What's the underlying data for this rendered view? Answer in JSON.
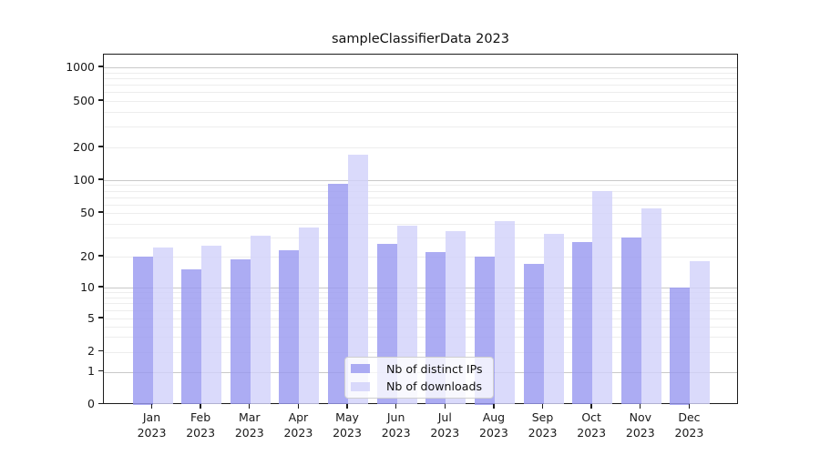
{
  "chart_data": {
    "type": "bar",
    "title": "sampleClassifierData 2023",
    "categories": [
      "Jan 2023",
      "Feb 2023",
      "Mar 2023",
      "Apr 2023",
      "May 2023",
      "Jun 2023",
      "Jul 2023",
      "Aug 2023",
      "Sep 2023",
      "Oct 2023",
      "Nov 2023",
      "Dec 2023"
    ],
    "series": [
      {
        "name": "Nb of distinct IPs",
        "color": "#9a9af0",
        "values": [
          20,
          15,
          19,
          23,
          93,
          26,
          22,
          20,
          17,
          27,
          30,
          10
        ]
      },
      {
        "name": "Nb of downloads",
        "color": "#d2d2fa",
        "values": [
          24,
          25,
          31,
          37,
          170,
          38,
          34,
          42,
          32,
          80,
          55,
          18
        ]
      }
    ],
    "yscale": "symlog",
    "yticks": [
      0,
      1,
      2,
      5,
      10,
      20,
      50,
      100,
      200,
      500,
      1000
    ],
    "ylim": [
      0,
      1000
    ],
    "xlabel": "",
    "ylabel": "",
    "grid": true,
    "legend_position": "lower center",
    "bar_opacity": 0.82
  }
}
